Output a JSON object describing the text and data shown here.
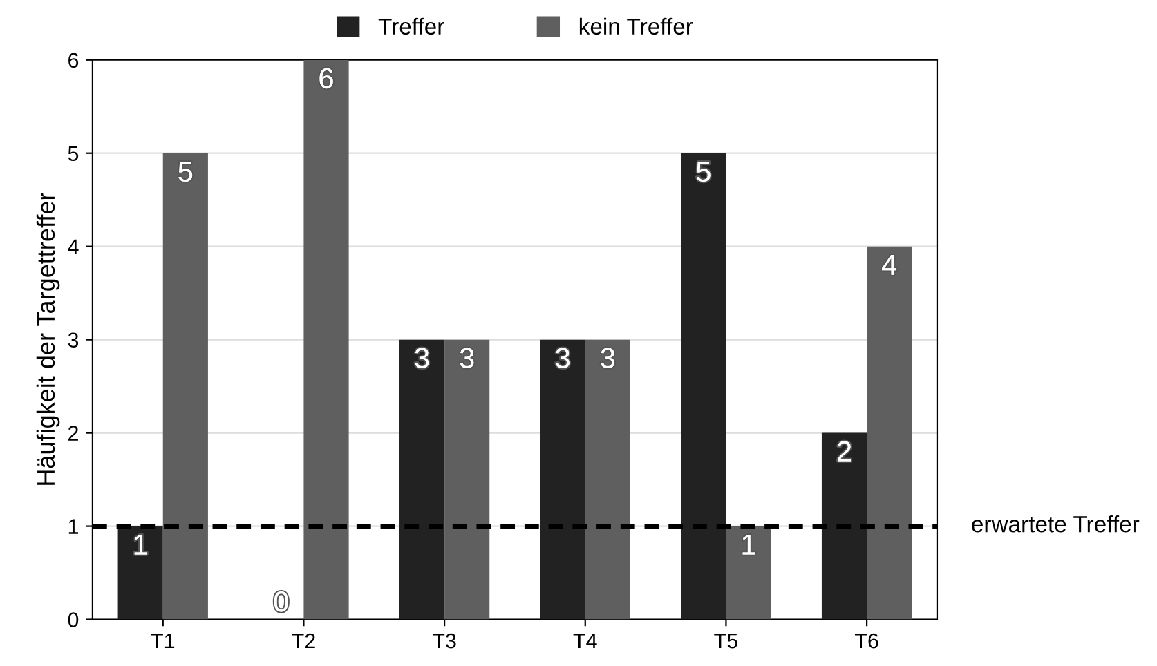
{
  "chart_data": {
    "type": "bar",
    "ylabel": "Häufigkeit der Targettreffer",
    "categories": [
      "T1",
      "T2",
      "T3",
      "T4",
      "T5",
      "T6"
    ],
    "series": [
      {
        "name": "Treffer",
        "color": "#222222",
        "values": [
          1,
          0,
          3,
          3,
          5,
          2
        ]
      },
      {
        "name": "kein Treffer",
        "color": "#5f5f5f",
        "values": [
          5,
          6,
          3,
          3,
          1,
          4
        ]
      }
    ],
    "ylim": [
      0,
      6
    ],
    "yticks": [
      0,
      1,
      2,
      3,
      4,
      5,
      6
    ],
    "grid": "y",
    "legend": "top",
    "data_labels": true,
    "ref_lines": [
      {
        "axis": "y",
        "value": 1,
        "label": "erwartete Treffer",
        "color": "#000000",
        "line_style": "dashed"
      }
    ]
  }
}
